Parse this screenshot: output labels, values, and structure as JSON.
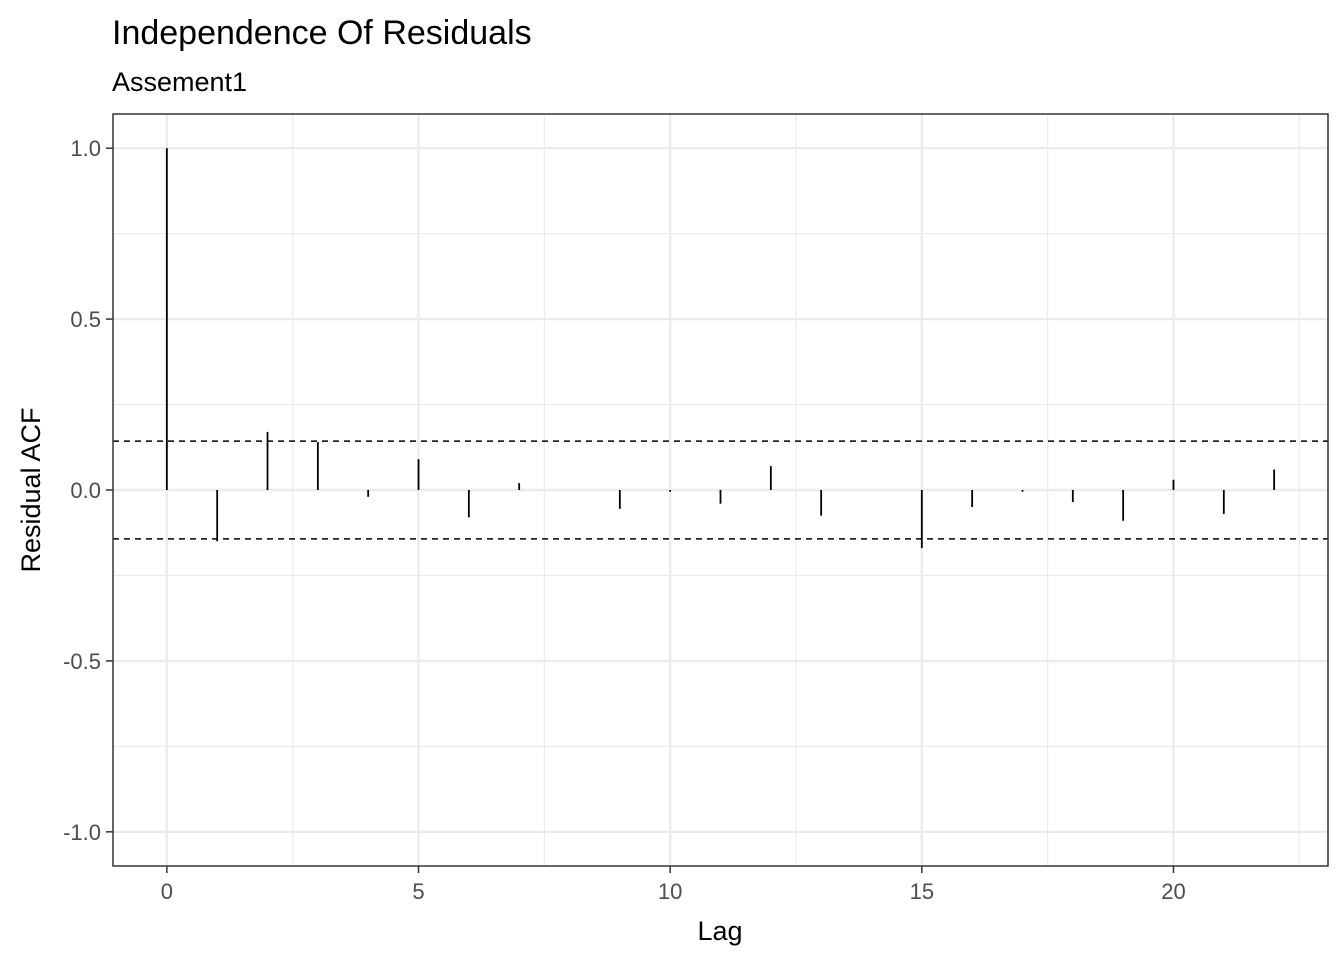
{
  "chart_data": {
    "type": "bar",
    "title": "Independence Of Residuals",
    "subtitle": "Assement1",
    "xlabel": "Lag",
    "ylabel": "Residual ACF",
    "xlim": [
      -1.07,
      23.07
    ],
    "ylim": [
      -1.1,
      1.1
    ],
    "x_ticks": [
      0,
      5,
      10,
      15,
      20
    ],
    "y_ticks": [
      -1.0,
      -0.5,
      0.0,
      0.5,
      1.0
    ],
    "y_tick_labels": [
      "-1.0",
      "-0.5",
      "0.0",
      "0.5",
      "1.0"
    ],
    "x_tick_labels": [
      "0",
      "5",
      "10",
      "15",
      "20"
    ],
    "grid": true,
    "confidence_bounds": [
      0.143,
      -0.143
    ],
    "lags": [
      0,
      1,
      2,
      3,
      4,
      5,
      6,
      7,
      8,
      9,
      10,
      11,
      12,
      13,
      14,
      15,
      16,
      17,
      18,
      19,
      20,
      21,
      22
    ],
    "values": [
      1.0,
      -0.15,
      0.17,
      0.14,
      -0.02,
      0.09,
      -0.08,
      0.02,
      0.0,
      -0.055,
      -0.005,
      -0.04,
      0.07,
      -0.075,
      0.0,
      -0.17,
      -0.05,
      -0.005,
      -0.035,
      -0.09,
      0.03,
      -0.07,
      0.06
    ],
    "colors": {
      "bar": "#000000",
      "panel_border": "#333333",
      "grid": "#ebebeb",
      "bound": "#000000"
    }
  }
}
